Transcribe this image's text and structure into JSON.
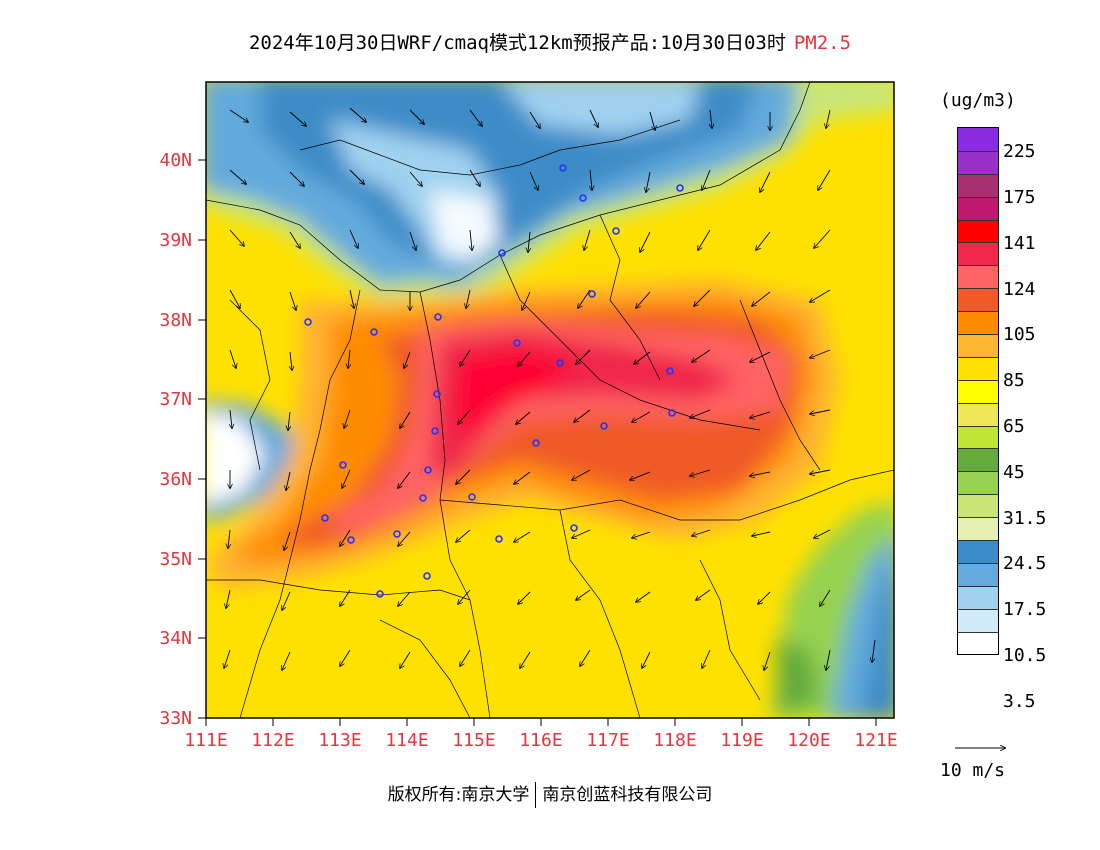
{
  "title": {
    "main": "2024年10月30日WRF/cmaq模式12km预报产品:10月30日03时",
    "variable": "PM2.5"
  },
  "axes": {
    "lat_labels": [
      "40N",
      "39N",
      "38N",
      "37N",
      "36N",
      "35N",
      "34N",
      "33N"
    ],
    "lon_labels": [
      "111E",
      "112E",
      "113E",
      "114E",
      "115E",
      "116E",
      "117E",
      "118E",
      "119E",
      "120E",
      "121E"
    ]
  },
  "legend": {
    "unit": "(ug/m3)",
    "labels": [
      "225",
      "175",
      "141",
      "124",
      "105",
      "85",
      "65",
      "45",
      "31.5",
      "24.5",
      "17.5",
      "10.5",
      "3.5"
    ],
    "colors": [
      "#8a2be2",
      "#9b30c8",
      "#a83070",
      "#c01870",
      "#ff0000",
      "#f0284c",
      "#ff6464",
      "#f05a28",
      "#ff8c00",
      "#ffb432",
      "#ffe100",
      "#ffff00",
      "#f0e65a",
      "#bee632",
      "#64aa3c",
      "#96d250",
      "#c8e678",
      "#e6f0b4",
      "#3c8cc8",
      "#64aadc",
      "#a0d2f0",
      "#d2ebfa",
      "#ffffff"
    ],
    "vector_label": "10 m/s"
  },
  "footer": {
    "left": "版权所有:南京大学",
    "right": "南京创蓝科技有限公司"
  }
}
